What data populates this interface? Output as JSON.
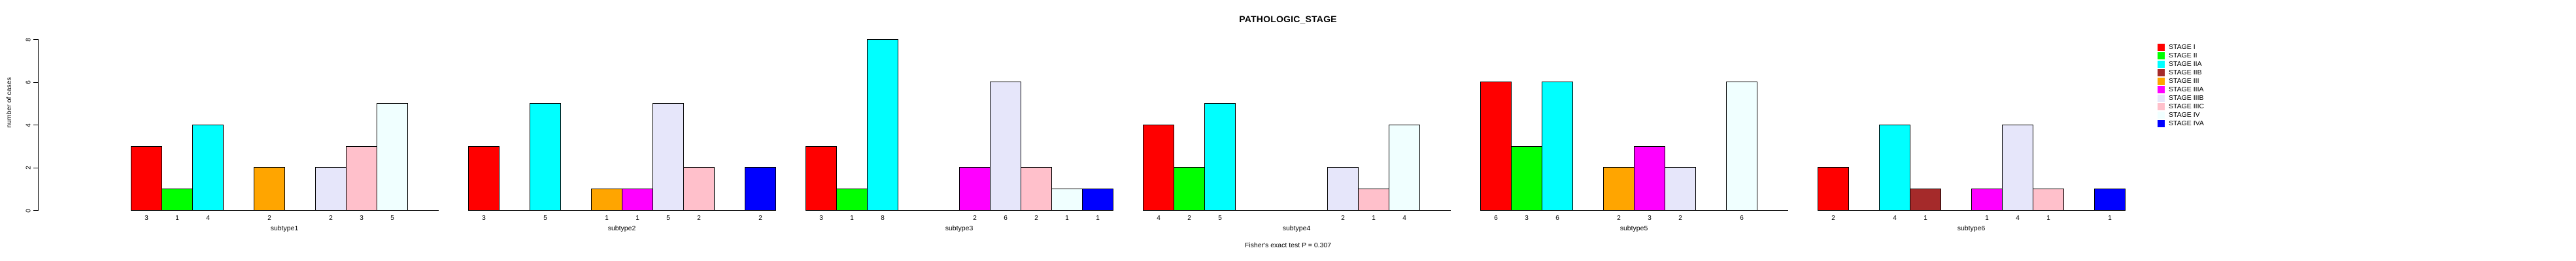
{
  "title": "PATHOLOGIC_STAGE",
  "footer_note": "Fisher's exact test P = 0.307",
  "y_axis": {
    "label": "number of cases",
    "ticks": [
      0,
      2,
      4,
      6,
      8
    ]
  },
  "chart_data": {
    "type": "bar",
    "title": "PATHOLOGIC_STAGE",
    "xlabel": "",
    "ylabel": "number of cases",
    "ylim": [
      0,
      8
    ],
    "grid": false,
    "legend_position": "right",
    "annotation": "Fisher's exact test P = 0.307",
    "categories": [
      "subtype1",
      "subtype2",
      "subtype3",
      "subtype4",
      "subtype5",
      "subtype6"
    ],
    "stages": [
      "STAGE I",
      "STAGE II",
      "STAGE IIA",
      "STAGE IIB",
      "STAGE III",
      "STAGE IIIA",
      "STAGE IIIB",
      "STAGE IIIC",
      "STAGE IV",
      "STAGE IVA"
    ],
    "colors": [
      "#FF0000",
      "#00FF00",
      "#00FFFF",
      "#A52A2A",
      "#FFA500",
      "#FF00FF",
      "#E6E6FA",
      "#FFC0CB",
      "#F0FFFF",
      "#0000FF"
    ],
    "series": [
      {
        "name": "subtype1",
        "values": [
          3,
          1,
          4,
          0,
          2,
          0,
          2,
          3,
          5,
          0
        ]
      },
      {
        "name": "subtype2",
        "values": [
          3,
          0,
          5,
          0,
          1,
          1,
          5,
          2,
          0,
          2
        ]
      },
      {
        "name": "subtype3",
        "values": [
          3,
          1,
          8,
          0,
          0,
          2,
          6,
          2,
          1,
          1
        ]
      },
      {
        "name": "subtype4",
        "values": [
          4,
          2,
          5,
          0,
          0,
          0,
          2,
          1,
          4,
          0
        ]
      },
      {
        "name": "subtype5",
        "values": [
          6,
          3,
          6,
          0,
          2,
          3,
          2,
          0,
          6,
          0
        ]
      },
      {
        "name": "subtype6",
        "values": [
          2,
          0,
          4,
          1,
          0,
          1,
          4,
          1,
          0,
          1
        ]
      }
    ]
  },
  "legend": {
    "entries": [
      {
        "label": "STAGE I",
        "color": "#FF0000"
      },
      {
        "label": "STAGE II",
        "color": "#00FF00"
      },
      {
        "label": "STAGE IIA",
        "color": "#00FFFF"
      },
      {
        "label": "STAGE IIB",
        "color": "#A52A2A"
      },
      {
        "label": "STAGE III",
        "color": "#FFA500"
      },
      {
        "label": "STAGE IIIA",
        "color": "#FF00FF"
      },
      {
        "label": "STAGE IIIB",
        "color": "#E6E6FA"
      },
      {
        "label": "STAGE IIIC",
        "color": "#FFC0CB"
      },
      {
        "label": "STAGE IV",
        "color": "#F0FFFF"
      },
      {
        "label": "STAGE IVA",
        "color": "#0000FF"
      }
    ]
  }
}
